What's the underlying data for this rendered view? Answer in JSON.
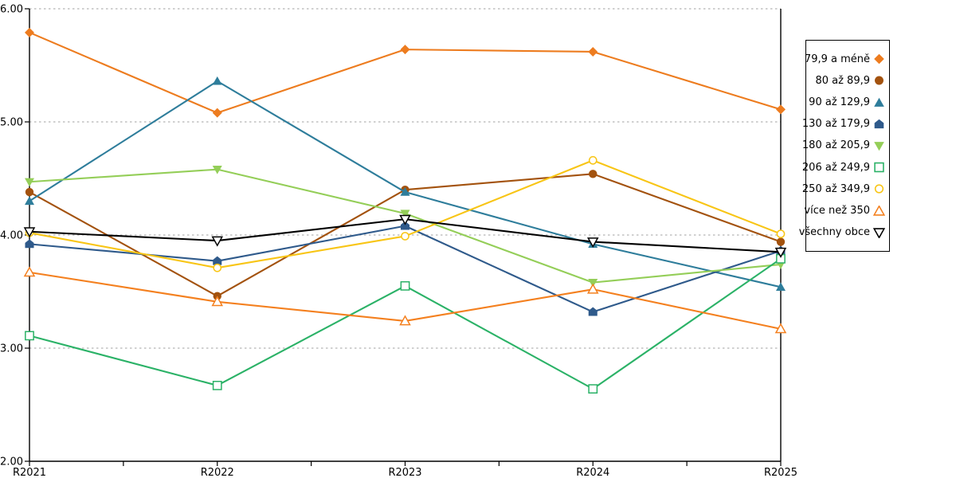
{
  "chart_data": {
    "type": "line",
    "title": "",
    "xlabel": "",
    "ylabel": "",
    "categories": [
      "R2021",
      "R2022",
      "R2023",
      "R2024",
      "R2025"
    ],
    "series": [
      {
        "name": "79,9 a méně",
        "color": "#ED7C1F",
        "marker": "diamond",
        "fill": "solid",
        "values": [
          5.79,
          5.08,
          5.64,
          5.62,
          5.11
        ]
      },
      {
        "name": "80 až 89,9",
        "color": "#A3520E",
        "marker": "circle",
        "fill": "solid",
        "values": [
          4.38,
          3.46,
          4.4,
          4.54,
          3.94
        ]
      },
      {
        "name": "90 až 129,9",
        "color": "#2E7D9B",
        "marker": "triangle-up",
        "fill": "solid",
        "values": [
          4.3,
          5.36,
          4.38,
          3.92,
          3.54
        ]
      },
      {
        "name": "130 až 179,9",
        "color": "#2F5A8B",
        "marker": "pentagon",
        "fill": "solid",
        "values": [
          3.92,
          3.77,
          4.08,
          3.32,
          3.86
        ]
      },
      {
        "name": "180 až 205,9",
        "color": "#94CE58",
        "marker": "triangle-down",
        "fill": "solid",
        "values": [
          4.47,
          4.58,
          4.19,
          3.58,
          3.74
        ]
      },
      {
        "name": "206 až 249,9",
        "color": "#2BB267",
        "marker": "square",
        "fill": "open",
        "values": [
          3.11,
          2.67,
          3.55,
          2.64,
          3.79
        ]
      },
      {
        "name": "250 až 349,9",
        "color": "#F8C515",
        "marker": "circle",
        "fill": "open",
        "values": [
          4.02,
          3.71,
          3.99,
          4.66,
          4.01
        ]
      },
      {
        "name": "více než 350",
        "color": "#F4801F",
        "marker": "triangle-up",
        "fill": "open",
        "values": [
          3.67,
          3.41,
          3.24,
          3.52,
          3.17
        ]
      },
      {
        "name": "všechny obce",
        "color": "#000000",
        "marker": "triangle-down",
        "fill": "open",
        "values": [
          4.03,
          3.95,
          4.14,
          3.94,
          3.85
        ]
      }
    ],
    "y_axis": {
      "min": 2,
      "max": 6,
      "tick_values": [
        2,
        3,
        4,
        5,
        6
      ],
      "tick_labels": [
        "2.00",
        "3.00",
        "4.00",
        "5.00",
        "6.00"
      ]
    },
    "grid": "horizontal-dashed",
    "grid_color": "#B3B3B3",
    "axis_color": "#000000",
    "legend_position": "right"
  }
}
